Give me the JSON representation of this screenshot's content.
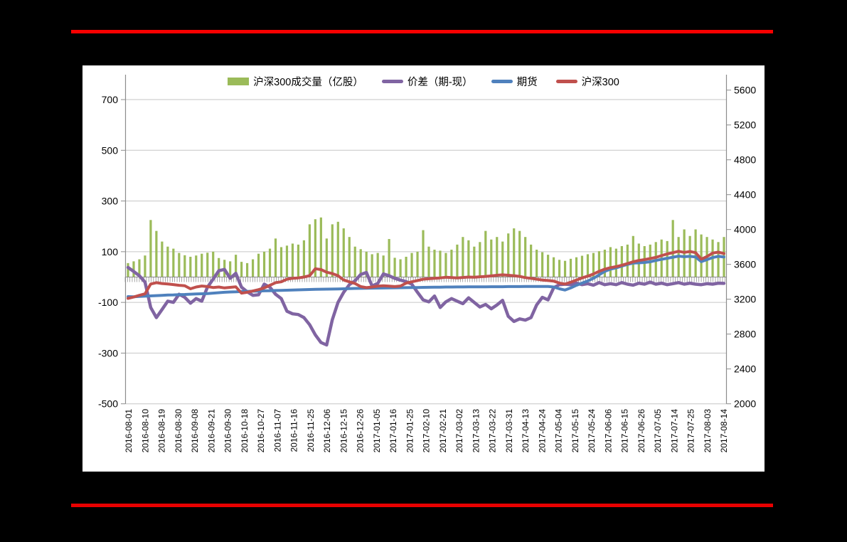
{
  "page": {
    "background": "#000000",
    "top_rule_color": "#F80000",
    "bottom_rule_color": "#E80000",
    "panel_background": "#FFFFFF"
  },
  "chart_data": {
    "type": "combo",
    "title": "",
    "legend": [
      {
        "label": "沪深300成交量（亿股）",
        "type": "bar",
        "color": "#9BBB59"
      },
      {
        "label": "价差（期-现）",
        "type": "line",
        "color": "#8064A2"
      },
      {
        "label": "期货",
        "type": "line",
        "color": "#4F81BD"
      },
      {
        "label": "沪深300",
        "type": "line",
        "color": "#C0504D"
      }
    ],
    "left_axis": {
      "ticks": [
        700,
        500,
        300,
        100,
        -100,
        -300,
        -500
      ],
      "min": -500,
      "max": 780
    },
    "right_axis": {
      "ticks": [
        5600,
        5200,
        4800,
        4400,
        4000,
        3600,
        3200,
        2800,
        2400,
        2000
      ],
      "min": 2000,
      "max": 5720
    },
    "x_tick_labels": [
      "2016-08-01",
      "2016-08-10",
      "2016-08-19",
      "2016-08-30",
      "2016-09-08",
      "2016-09-21",
      "2016-09-30",
      "2016-10-18",
      "2016-10-27",
      "2016-11-07",
      "2016-11-16",
      "2016-11-25",
      "2016-12-06",
      "2016-12-15",
      "2016-12-26",
      "2017-01-05",
      "2017-01-16",
      "2017-01-25",
      "2017-02-10",
      "2017-02-21",
      "2017-03-02",
      "2017-03-13",
      "2017-03-22",
      "2017-03-31",
      "2017-04-13",
      "2017-04-24",
      "2017-05-04",
      "2017-05-15",
      "2017-05-24",
      "2017-06-06",
      "2017-06-15",
      "2017-06-26",
      "2017-07-05",
      "2017-07-14",
      "2017-07-25",
      "2017-08-03",
      "2017-08-14"
    ],
    "series": {
      "volume": {
        "name": "沪深300成交量（亿股）",
        "axis": "left",
        "color": "#9BBB59",
        "values": [
          55,
          62,
          70,
          85,
          225,
          182,
          140,
          120,
          112,
          95,
          86,
          80,
          85,
          92,
          96,
          100,
          75,
          68,
          62,
          88,
          60,
          55,
          70,
          92,
          100,
          112,
          152,
          118,
          124,
          132,
          128,
          145,
          208,
          228,
          235,
          152,
          208,
          218,
          192,
          158,
          120,
          110,
          100,
          90,
          95,
          85,
          150,
          76,
          70,
          80,
          95,
          100,
          185,
          120,
          108,
          104,
          95,
          108,
          128,
          158,
          145,
          120,
          138,
          182,
          148,
          158,
          140,
          172,
          192,
          182,
          158,
          128,
          108,
          98,
          88,
          78,
          68,
          64,
          72,
          78,
          84,
          90,
          95,
          102,
          108,
          118,
          112,
          122,
          128,
          162,
          132,
          122,
          128,
          138,
          148,
          142,
          225,
          158,
          188,
          162,
          188,
          168,
          158,
          148,
          138,
          158
        ]
      },
      "spread": {
        "name": "价差（期-现）",
        "axis": "left",
        "color": "#8064A2",
        "values": [
          38,
          22,
          5,
          -20,
          -120,
          -160,
          -128,
          -95,
          -100,
          -68,
          -80,
          -103,
          -85,
          -95,
          -40,
          -8,
          25,
          30,
          -5,
          15,
          -40,
          -58,
          -72,
          -70,
          -28,
          -40,
          -68,
          -85,
          -135,
          -145,
          -148,
          -160,
          -188,
          -228,
          -258,
          -268,
          -168,
          -100,
          -60,
          -30,
          -15,
          10,
          18,
          -35,
          -25,
          12,
          5,
          -5,
          -12,
          -18,
          -28,
          -60,
          -90,
          -98,
          -75,
          -120,
          -98,
          -85,
          -95,
          -105,
          -82,
          -100,
          -118,
          -108,
          -125,
          -110,
          -92,
          -155,
          -175,
          -165,
          -170,
          -160,
          -110,
          -80,
          -90,
          -42,
          -30,
          -28,
          -30,
          -24,
          -30,
          -26,
          -32,
          -22,
          -30,
          -26,
          -30,
          -22,
          -28,
          -32,
          -24,
          -28,
          -20,
          -28,
          -24,
          -30,
          -26,
          -22,
          -28,
          -24,
          -28,
          -30,
          -26,
          -28,
          -24,
          -25
        ]
      },
      "futures": {
        "name": "期货",
        "axis": "right",
        "color": "#4F81BD",
        "values": [
          3230,
          3228,
          3232,
          3235,
          3238,
          3242,
          3245,
          3248,
          3250,
          3253,
          3255,
          3258,
          3260,
          3263,
          3265,
          3270,
          3275,
          3280,
          3283,
          3285,
          3288,
          3290,
          3292,
          3294,
          3296,
          3298,
          3300,
          3302,
          3304,
          3306,
          3308,
          3310,
          3312,
          3314,
          3315,
          3316,
          3317,
          3318,
          3320,
          3322,
          3324,
          3325,
          3326,
          3327,
          3328,
          3329,
          3330,
          3331,
          3332,
          3333,
          3334,
          3335,
          3336,
          3337,
          3338,
          3339,
          3340,
          3340,
          3341,
          3341,
          3342,
          3342,
          3343,
          3343,
          3344,
          3344,
          3344,
          3345,
          3345,
          3345,
          3346,
          3346,
          3346,
          3347,
          3347,
          3340,
          3320,
          3305,
          3330,
          3360,
          3385,
          3410,
          3440,
          3480,
          3520,
          3545,
          3560,
          3580,
          3600,
          3615,
          3618,
          3622,
          3630,
          3645,
          3658,
          3670,
          3682,
          3695,
          3688,
          3692,
          3685,
          3632,
          3655,
          3678,
          3692,
          3685
        ]
      },
      "csi300": {
        "name": "沪深300",
        "axis": "right",
        "color": "#C0504D",
        "values": [
          3210,
          3225,
          3245,
          3262,
          3375,
          3390,
          3380,
          3375,
          3368,
          3360,
          3355,
          3320,
          3340,
          3352,
          3345,
          3335,
          3340,
          3330,
          3336,
          3342,
          3270,
          3280,
          3295,
          3310,
          3330,
          3360,
          3390,
          3400,
          3430,
          3440,
          3445,
          3455,
          3470,
          3550,
          3540,
          3510,
          3495,
          3470,
          3420,
          3400,
          3380,
          3345,
          3333,
          3340,
          3350,
          3355,
          3350,
          3345,
          3352,
          3385,
          3400,
          3415,
          3430,
          3435,
          3440,
          3445,
          3452,
          3448,
          3444,
          3450,
          3455,
          3452,
          3458,
          3462,
          3468,
          3475,
          3480,
          3475,
          3470,
          3462,
          3448,
          3440,
          3430,
          3420,
          3415,
          3408,
          3385,
          3374,
          3395,
          3420,
          3445,
          3465,
          3490,
          3520,
          3545,
          3562,
          3575,
          3590,
          3610,
          3630,
          3645,
          3655,
          3668,
          3680,
          3700,
          3720,
          3735,
          3750,
          3738,
          3748,
          3735,
          3660,
          3690,
          3730,
          3740,
          3725
        ]
      }
    },
    "grid": {
      "gridline_color": "#C6C6C6",
      "axis_color": "#8C8C8C",
      "category_tick_color": "#707070"
    }
  }
}
